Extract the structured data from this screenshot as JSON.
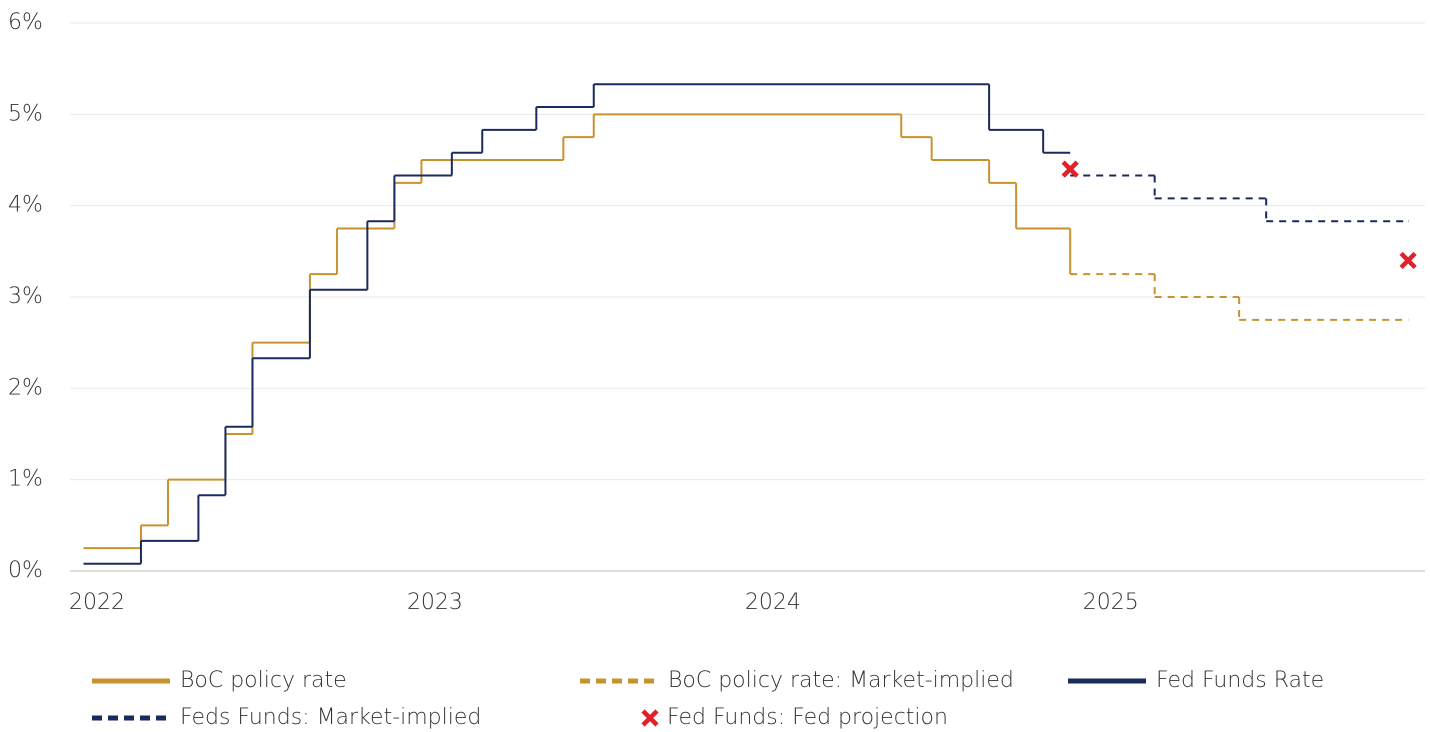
{
  "chart_data": {
    "type": "step",
    "xlim": [
      2021.92,
      2025.93
    ],
    "xticks": [
      2022,
      2023,
      2024,
      2025
    ],
    "ylim": [
      0,
      6
    ],
    "yticks": [
      {
        "value": 0,
        "label": "0%"
      },
      {
        "value": 1,
        "label": "1%"
      },
      {
        "value": 2,
        "label": "2%"
      },
      {
        "value": 3,
        "label": "3%"
      },
      {
        "value": 4,
        "label": "4%"
      },
      {
        "value": 5,
        "label": "5%"
      },
      {
        "value": 6,
        "label": "6%"
      }
    ],
    "grid": true,
    "legend": "bottom",
    "series": [
      {
        "name": "BoC policy rate",
        "color": "#c8922e",
        "style": "solid",
        "x": [
          2021.96,
          2022.13,
          2022.21,
          2022.38,
          2022.46,
          2022.63,
          2022.71,
          2022.88,
          2022.96,
          2023.38,
          2023.47,
          2024.38,
          2024.47,
          2024.64,
          2024.72,
          2024.88
        ],
        "values": [
          0.25,
          0.5,
          1.0,
          1.5,
          2.5,
          3.25,
          3.75,
          4.25,
          4.5,
          4.75,
          5.0,
          4.75,
          4.5,
          4.25,
          3.75,
          3.25
        ]
      },
      {
        "name": "BoC policy rate: Market-implied",
        "color": "#c8922e",
        "style": "dashed",
        "x": [
          2024.88,
          2025.13,
          2025.38,
          2025.88
        ],
        "values": [
          3.25,
          3.0,
          2.75,
          2.75
        ]
      },
      {
        "name": "Fed Funds Rate",
        "color": "#1b2a5c",
        "style": "solid",
        "x": [
          2021.96,
          2022.13,
          2022.3,
          2022.38,
          2022.46,
          2022.63,
          2022.8,
          2022.88,
          2023.05,
          2023.14,
          2023.3,
          2023.47,
          2024.64,
          2024.8,
          2024.88
        ],
        "values": [
          0.08,
          0.33,
          0.83,
          1.58,
          2.33,
          3.08,
          3.83,
          4.33,
          4.58,
          4.83,
          5.08,
          5.33,
          4.83,
          4.58,
          4.58
        ]
      },
      {
        "name": "Feds Funds: Market-implied",
        "color": "#1b2a5c",
        "style": "dashed",
        "x": [
          2024.88,
          2025.13,
          2025.46,
          2025.88
        ],
        "values": [
          4.33,
          4.08,
          3.83,
          3.83
        ]
      },
      {
        "name": "Fed Funds: Fed projection",
        "color": "#e0202a",
        "style": "marker",
        "x": [
          2024.88,
          2025.88
        ],
        "values": [
          4.4,
          3.4
        ]
      }
    ]
  }
}
